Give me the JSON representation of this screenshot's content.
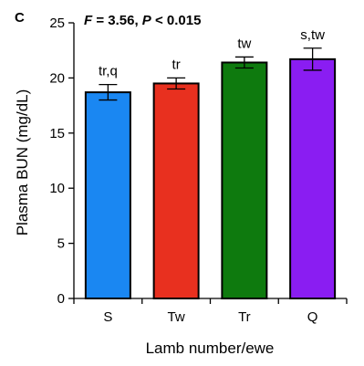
{
  "panel_label": "C",
  "chart_data": {
    "type": "bar",
    "annotation": {
      "f_label": "F",
      "f_value": " = 3.56, ",
      "p_label": "P",
      "p_value": " < 0.015"
    },
    "categories": [
      "S",
      "Tw",
      "Tr",
      "Q"
    ],
    "values": [
      18.7,
      19.5,
      21.4,
      21.7
    ],
    "errors": [
      0.7,
      0.5,
      0.5,
      1.0
    ],
    "significance": [
      "tr,q",
      "tr",
      "tw",
      "s,tw"
    ],
    "colors": [
      "#1a87f2",
      "#e8301f",
      "#0e7a0e",
      "#8a1df2"
    ],
    "xlabel": "Lamb number/ewe",
    "ylabel": "Plasma BUN (mg/dL)",
    "ylim": [
      0,
      25
    ],
    "yticks": [
      "0",
      "5",
      "10",
      "15",
      "20",
      "25"
    ],
    "grid": false
  }
}
